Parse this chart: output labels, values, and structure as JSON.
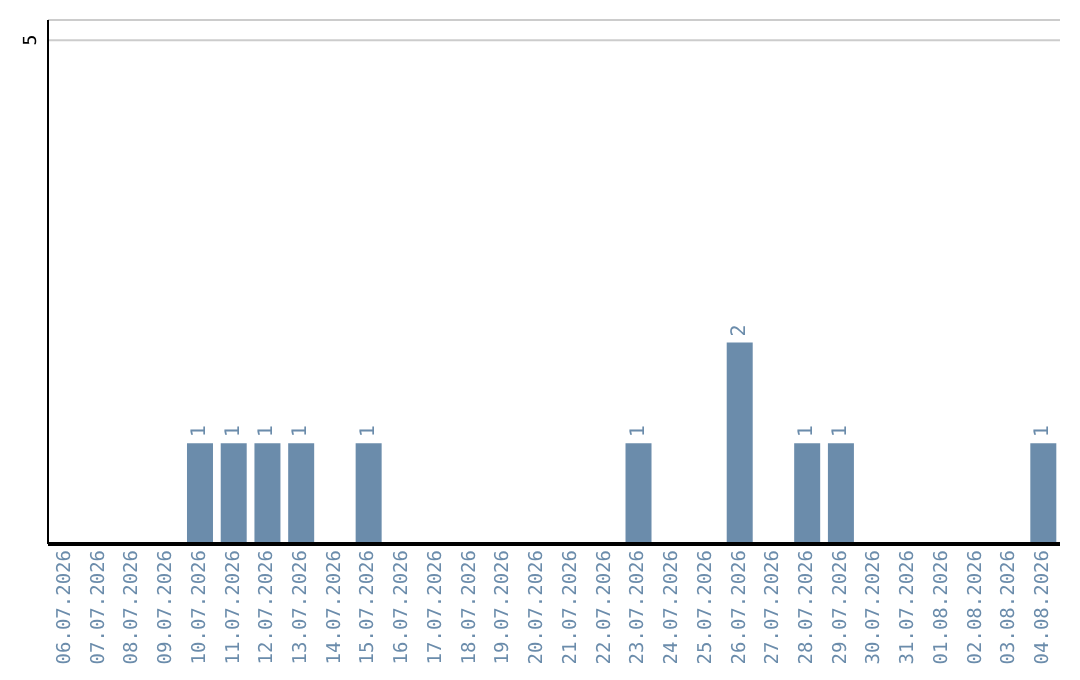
{
  "chart_data": {
    "type": "bar",
    "categories": [
      "06.07.2026",
      "07.07.2026",
      "08.07.2026",
      "09.07.2026",
      "10.07.2026",
      "11.07.2026",
      "12.07.2026",
      "13.07.2026",
      "14.07.2026",
      "15.07.2026",
      "16.07.2026",
      "17.07.2026",
      "18.07.2026",
      "19.07.2026",
      "20.07.2026",
      "21.07.2026",
      "22.07.2026",
      "23.07.2026",
      "24.07.2026",
      "25.07.2026",
      "26.07.2026",
      "27.07.2026",
      "28.07.2026",
      "29.07.2026",
      "30.07.2026",
      "31.07.2026",
      "01.08.2026",
      "02.08.2026",
      "03.08.2026",
      "04.08.2026"
    ],
    "values": [
      0,
      0,
      0,
      0,
      1,
      1,
      1,
      1,
      0,
      1,
      0,
      0,
      0,
      0,
      0,
      0,
      0,
      1,
      0,
      0,
      2,
      0,
      1,
      1,
      0,
      0,
      0,
      0,
      0,
      1
    ],
    "value_labels": [
      null,
      null,
      null,
      null,
      "1",
      "1",
      "1",
      "1",
      null,
      "1",
      null,
      null,
      null,
      null,
      null,
      null,
      null,
      "1",
      null,
      null,
      "2",
      null,
      "1",
      "1",
      null,
      null,
      null,
      null,
      null,
      "1"
    ],
    "color": "#6b8cab",
    "ylim": [
      0,
      5.2
    ],
    "yticks": [
      5
    ],
    "grid": "y"
  }
}
